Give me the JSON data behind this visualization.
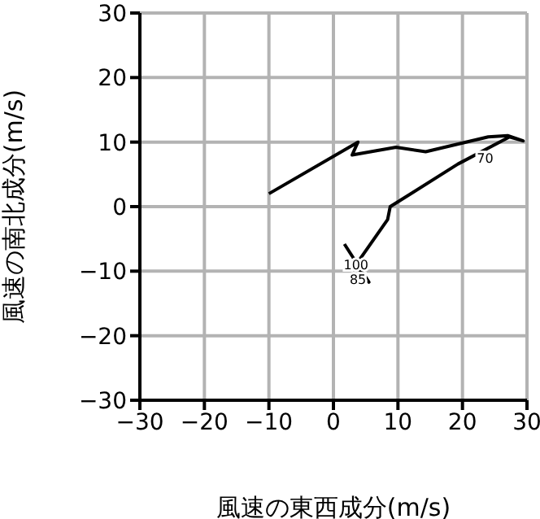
{
  "chart_data": {
    "type": "line",
    "xlabel": "風速の東西成分(m/s)",
    "ylabel": "風速の南北成分(m/s)",
    "xlim": [
      -30,
      30
    ],
    "xticks": [
      -30,
      -20,
      -10,
      0,
      10,
      20,
      30
    ],
    "ylim": [
      -30,
      30
    ],
    "yticks": [
      -30,
      -20,
      -10,
      0,
      10,
      20,
      30
    ],
    "grid": true,
    "series": [
      {
        "color": "#000000",
        "x": [
          1.7,
          5.5,
          3.5,
          8.4,
          8.8,
          19.3,
          27.3,
          29.4,
          27,
          24,
          14.3,
          9.7,
          2.9,
          3.8,
          -10
        ],
        "values": [
          -5.8,
          -11.7,
          -9,
          -2,
          0,
          6.6,
          10.8,
          10.2,
          11,
          10.8,
          8.5,
          9.2,
          8,
          10,
          2
        ]
      }
    ],
    "annotations": [
      {
        "text": "70",
        "x": 23.5,
        "y": 7.5
      },
      {
        "text": "100",
        "x": 3.5,
        "y": -9
      },
      {
        "text": "85",
        "x": 3.8,
        "y": -11.3
      }
    ]
  }
}
